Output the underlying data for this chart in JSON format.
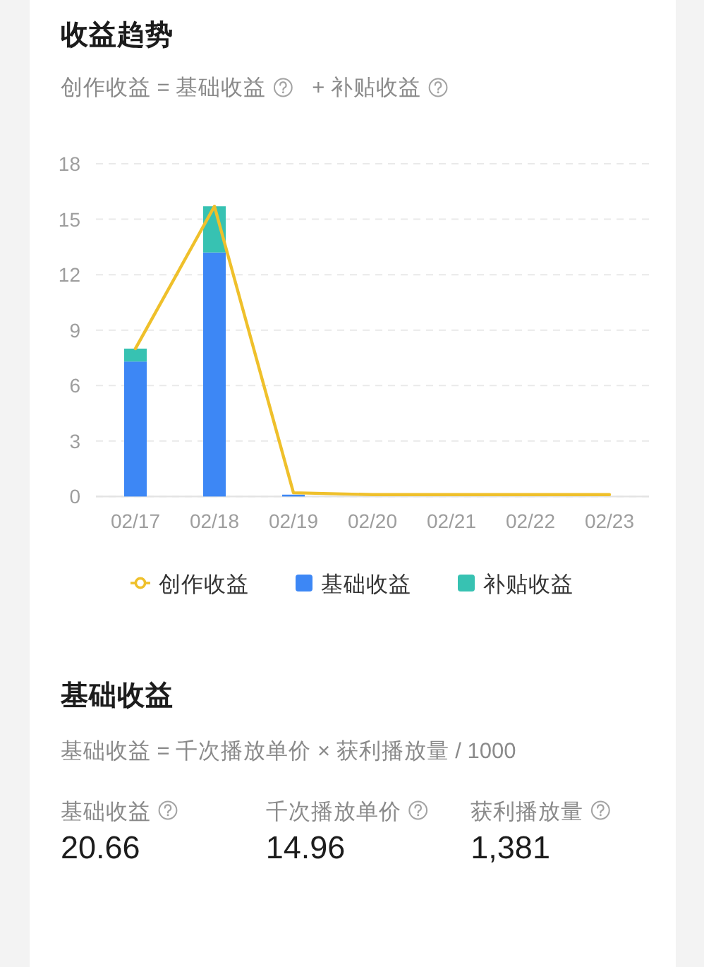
{
  "chart_data": [
    {
      "type": "bar",
      "title": "收益趋势",
      "subtitle": "创作收益 = 基础收益 + 补贴收益",
      "categories": [
        "02/17",
        "02/18",
        "02/19",
        "02/20",
        "02/21",
        "02/22",
        "02/23"
      ],
      "stacked": true,
      "series": [
        {
          "name": "创作收益",
          "type": "line",
          "color": "#efc02b",
          "values": [
            8.0,
            15.7,
            0.2,
            0.1,
            0.1,
            0.1,
            0.1
          ]
        },
        {
          "name": "基础收益",
          "color": "#3d87f5",
          "values": [
            7.3,
            13.2,
            0.1,
            null,
            null,
            null,
            null
          ]
        },
        {
          "name": "补贴收益",
          "color": "#37c2b2",
          "values": [
            0.7,
            2.5,
            null,
            null,
            null,
            null,
            null
          ]
        }
      ],
      "ylim": [
        0,
        18
      ],
      "yticks": [
        0,
        3,
        6,
        9,
        12,
        15,
        18
      ],
      "grid": "y",
      "legend": "bottom"
    },
    {
      "type": "other",
      "title": "基础收益",
      "subtitle": "基础收益 = 千次播放单价 × 获利播放量 / 1000",
      "annotations": [
        "基础收益",
        "20.66",
        "千次播放单价",
        "14.96",
        "获利播放量",
        "1,381"
      ]
    }
  ]
}
